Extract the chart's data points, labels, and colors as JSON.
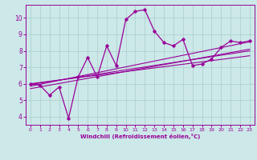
{
  "xlabel": "Windchill (Refroidissement éolien,°C)",
  "bg_color": "#cce8e8",
  "line_color": "#990099",
  "grid_color": "#aacccc",
  "x_ticks": [
    0,
    1,
    2,
    3,
    4,
    5,
    6,
    7,
    8,
    9,
    10,
    11,
    12,
    13,
    14,
    15,
    16,
    17,
    18,
    19,
    20,
    21,
    22,
    23
  ],
  "y_ticks": [
    4,
    5,
    6,
    7,
    8,
    9,
    10
  ],
  "ylim": [
    3.5,
    10.8
  ],
  "xlim": [
    -0.5,
    23.5
  ],
  "series": [
    [
      0,
      6.0
    ],
    [
      1,
      5.9
    ],
    [
      2,
      5.3
    ],
    [
      3,
      5.8
    ],
    [
      4,
      3.9
    ],
    [
      5,
      6.4
    ],
    [
      6,
      7.6
    ],
    [
      7,
      6.4
    ],
    [
      8,
      8.3
    ],
    [
      9,
      7.1
    ],
    [
      10,
      9.9
    ],
    [
      11,
      10.4
    ],
    [
      12,
      10.5
    ],
    [
      13,
      9.2
    ],
    [
      14,
      8.5
    ],
    [
      15,
      8.3
    ],
    [
      16,
      8.7
    ],
    [
      17,
      7.1
    ],
    [
      18,
      7.2
    ],
    [
      19,
      7.5
    ],
    [
      20,
      8.2
    ],
    [
      21,
      8.6
    ],
    [
      22,
      8.5
    ],
    [
      23,
      8.6
    ]
  ],
  "regression_lines": [
    {
      "start_x": 0,
      "start_y": 5.85,
      "end_x": 23,
      "end_y": 8.55
    },
    {
      "start_x": 0,
      "start_y": 5.7,
      "end_x": 23,
      "end_y": 8.1
    },
    {
      "start_x": 0,
      "start_y": 5.95,
      "end_x": 23,
      "end_y": 8.0
    },
    {
      "start_x": 0,
      "start_y": 6.0,
      "end_x": 23,
      "end_y": 7.7
    }
  ]
}
